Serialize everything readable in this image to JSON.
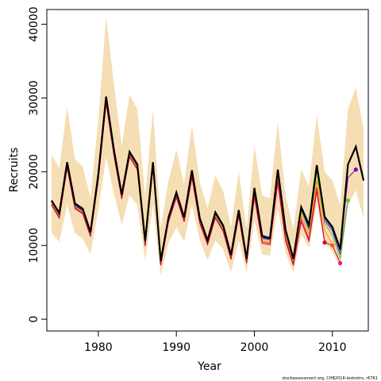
{
  "chart_data": {
    "type": "line",
    "xlabel": "Year",
    "ylabel": "Recruits",
    "footnote": "stockassessment.org, CHB2016-testretro, r6761",
    "xlim": [
      1973.4,
      2014.6
    ],
    "ylim": [
      -1600,
      42000
    ],
    "xticks": [
      1980,
      1990,
      2000,
      2010
    ],
    "yticks": [
      0,
      10000,
      20000,
      30000,
      40000
    ],
    "band_color": "#f5deb3",
    "main_color": "#000000",
    "years": [
      1974,
      1975,
      1976,
      1977,
      1978,
      1979,
      1980,
      1981,
      1982,
      1983,
      1984,
      1985,
      1986,
      1987,
      1988,
      1989,
      1990,
      1991,
      1992,
      1993,
      1994,
      1995,
      1996,
      1997,
      1998,
      1999,
      2000,
      2001,
      2002,
      2003,
      2004,
      2005,
      2006,
      2007,
      2008,
      2009,
      2010,
      2011,
      2012,
      2013,
      2014
    ],
    "main": [
      16100,
      14400,
      21300,
      15700,
      15000,
      11800,
      19700,
      30200,
      23000,
      16900,
      22700,
      21000,
      10600,
      21300,
      7900,
      13800,
      17200,
      13800,
      20200,
      13700,
      10700,
      14500,
      12700,
      8700,
      14800,
      8200,
      17800,
      11300,
      11000,
      20300,
      12100,
      8200,
      15200,
      12800,
      20900,
      13900,
      12500,
      9500,
      21000,
      23400,
      18800
    ],
    "upper": [
      22300,
      20500,
      28800,
      21700,
      20700,
      16500,
      27000,
      41000,
      31900,
      23500,
      30500,
      28500,
      16700,
      28500,
      12400,
      18800,
      23000,
      18300,
      26300,
      18600,
      15000,
      19500,
      17400,
      12500,
      20000,
      12300,
      23500,
      16800,
      16400,
      26800,
      16800,
      12200,
      20300,
      18000,
      27700,
      20000,
      18800,
      15500,
      28500,
      31400,
      25800
    ],
    "lower": [
      11700,
      10500,
      15500,
      11700,
      10900,
      8800,
      14800,
      22000,
      17000,
      12800,
      16800,
      15500,
      7900,
      15500,
      5900,
      10300,
      12500,
      10500,
      15500,
      10700,
      8000,
      10700,
      9500,
      6400,
      10700,
      6400,
      13300,
      8800,
      8600,
      15000,
      9000,
      6300,
      11500,
      9700,
      15500,
      10300,
      9200,
      6900,
      15500,
      17500,
      13600
    ],
    "series": [
      {
        "color": "#7b00b3",
        "start_year": 1974,
        "values": [
          16000,
          14200,
          21000,
          15500,
          14800,
          11700,
          19400,
          29800,
          22700,
          16800,
          22500,
          20800,
          10400,
          21100,
          7800,
          13700,
          17000,
          13700,
          19900,
          13600,
          10600,
          14300,
          12500,
          8600,
          14600,
          8100,
          17500,
          11100,
          10900,
          20000,
          11900,
          8100,
          15000,
          12500,
          20500,
          13700,
          12300,
          9300,
          19200,
          20300
        ]
      },
      {
        "color": "#2222dd",
        "start_year": 1974,
        "values": [
          15900,
          14100,
          20900,
          15400,
          14700,
          11600,
          19300,
          29700,
          22600,
          16700,
          22400,
          20700,
          10300,
          21000,
          7700,
          13600,
          16900,
          13600,
          19800,
          13500,
          10500,
          14200,
          12400,
          8500,
          14500,
          8000,
          17400,
          11000,
          10800,
          19900,
          11800,
          8000,
          14900,
          12300,
          20200,
          13400,
          12000,
          8800,
          16100
        ]
      },
      {
        "color": "#6abf2b",
        "start_year": 1974,
        "values": [
          15800,
          14000,
          20800,
          15300,
          14600,
          11500,
          19200,
          29600,
          22500,
          16600,
          22300,
          20600,
          10200,
          20900,
          7600,
          13500,
          16800,
          13500,
          19600,
          13400,
          10400,
          14100,
          12300,
          8400,
          14400,
          7900,
          17300,
          10900,
          10700,
          19700,
          11600,
          7900,
          14600,
          12000,
          19800,
          13000,
          11400,
          8200,
          16100
        ]
      },
      {
        "color": "#ff9900",
        "start_year": 1974,
        "values": [
          15700,
          13900,
          20700,
          15200,
          14500,
          11400,
          19100,
          29500,
          22400,
          16500,
          22200,
          20500,
          10100,
          20800,
          7500,
          13400,
          16700,
          13400,
          19400,
          13200,
          10300,
          13900,
          12100,
          8300,
          14200,
          7800,
          17000,
          10700,
          10500,
          19300,
          11300,
          7700,
          14100,
          11500,
          18800,
          12100,
          10100
        ]
      },
      {
        "color": "#e8195a",
        "start_year": 1974,
        "values": [
          15600,
          13800,
          20600,
          15100,
          14400,
          11300,
          19000,
          29400,
          22300,
          16400,
          22100,
          20400,
          10000,
          20700,
          7400,
          13300,
          16600,
          13300,
          19300,
          13100,
          10200,
          13800,
          12000,
          8200,
          14100,
          7700,
          16800,
          10500,
          10300,
          18900,
          11000,
          7500,
          13600,
          10900,
          17900,
          10500
        ]
      },
      {
        "color": "#cc0033",
        "start_year": 1974,
        "values": [
          15500,
          13700,
          20500,
          15000,
          14300,
          11200,
          18900,
          29300,
          22200,
          16300,
          22000,
          20300,
          9900,
          20600,
          7300,
          13200,
          16500,
          13200,
          19200,
          13000,
          10100,
          13700,
          11900,
          8100,
          14000,
          7600,
          16600,
          10300,
          10100,
          18500,
          10600,
          7300,
          13200,
          10600,
          17400,
          10400,
          10000,
          7600
        ]
      }
    ],
    "endpoints": [
      {
        "color": "#7b00b3",
        "year": 2013,
        "value": 20300
      },
      {
        "color": "#6abf2b",
        "year": 2012,
        "value": 16100
      },
      {
        "color": "#cc0033",
        "year": 2009,
        "value": 10400
      },
      {
        "color": "#ff5500",
        "year": 2010,
        "value": 10000
      },
      {
        "color": "#e8198a",
        "year": 2011,
        "value": 7600
      }
    ]
  }
}
